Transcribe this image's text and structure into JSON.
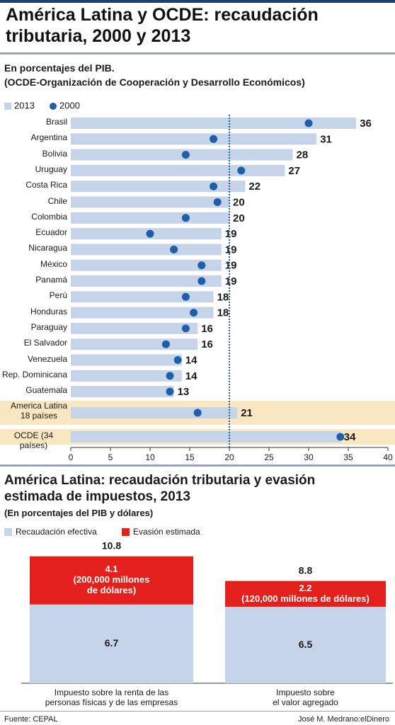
{
  "header": {
    "title": "América Latina y OCDE: recaudación\ntributaria, 2000 y 2013"
  },
  "footer": {
    "source": "Fuente: CEPAL",
    "credit": "José M. Medrano:elDinero"
  },
  "chart_data": [
    {
      "type": "bar",
      "orientation": "horizontal",
      "subtitle": "En porcentajes del PIB.\n(OCDE-Organización de Cooperación y Desarrollo Económicos)",
      "categories": [
        "Brasil",
        "Argentina",
        "Bolivia",
        "Uruguay",
        "Costa Rica",
        "Chile",
        "Colombia",
        "Ecuador",
        "Nicaragua",
        "México",
        "Panamá",
        "Perú",
        "Honduras",
        "Paraguay",
        "El Salvador",
        "Venezuela",
        "Rep. Dominicana",
        "Guatemala",
        "America Latina\n18 países",
        "OCDE (34 países)"
      ],
      "series": [
        {
          "name": "2013",
          "mark": "bar",
          "color": "#c6d4ea",
          "values": [
            36,
            31,
            28,
            27,
            22,
            20,
            20,
            19,
            19,
            19,
            19,
            18,
            18,
            16,
            16,
            14,
            14,
            13,
            21,
            34
          ]
        },
        {
          "name": "2000",
          "mark": "dot",
          "color": "#1f5ea8",
          "values": [
            30,
            18,
            14.5,
            21.5,
            18,
            18.5,
            14.5,
            10,
            13,
            16.5,
            16.5,
            14.5,
            15.5,
            14.5,
            12,
            13.5,
            12.5,
            12.5,
            16,
            34
          ]
        }
      ],
      "xlim": [
        0,
        40
      ],
      "xticks": [
        0,
        5,
        10,
        15,
        20,
        25,
        30,
        35,
        40
      ],
      "reference_x": 20,
      "reference_color": "#1f5ea8"
    },
    {
      "type": "stacked-bar",
      "title": "América Latina: recaudación tributaria y evasión\nestimada de impuestos, 2013",
      "subtitle": "(En porcentajes del PIB y dólares)",
      "categories": [
        "Impuesto sobre la renta de las\npersonas físicas y de las empresas",
        "Impuesto sobre\nel valor agregado"
      ],
      "series": [
        {
          "name": "Recaudación efectiva",
          "color": "#c6d4ea",
          "values": [
            6.7,
            6.5
          ]
        },
        {
          "name": "Evasión estimada",
          "color": "#e3201b",
          "values": [
            4.1,
            2.2
          ],
          "value_labels": [
            "4.1\n(200,000 millones\nde dólares)",
            "2.2\n(120,000 millones de dólares)"
          ]
        }
      ],
      "total_labels": [
        10.8,
        8.8
      ]
    }
  ]
}
